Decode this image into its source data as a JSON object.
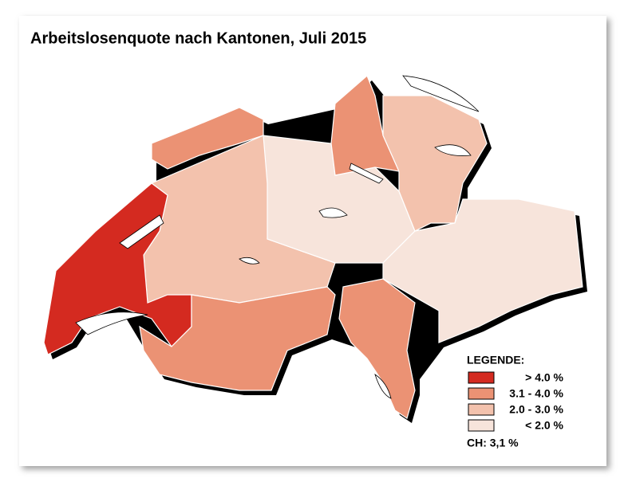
{
  "title": "Arbeitslosenquote nach Kantonen, Juli 2015",
  "legend": {
    "title": "LEGENDE:",
    "items": [
      {
        "label": "> 4.0 %",
        "color": "#d42a20"
      },
      {
        "label": "3.1 - 4.0 %",
        "color": "#eb9274"
      },
      {
        "label": "2.0 - 3.0 %",
        "color": "#f3c2ad"
      },
      {
        "label": "< 2.0 %",
        "color": "#f7e4db"
      }
    ]
  },
  "national_rate": "CH: 3,1 %"
}
